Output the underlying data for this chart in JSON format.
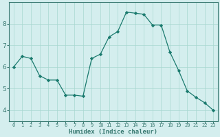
{
  "x": [
    0,
    1,
    2,
    3,
    4,
    5,
    6,
    7,
    8,
    9,
    10,
    11,
    12,
    13,
    14,
    15,
    16,
    17,
    18,
    19,
    20,
    21,
    22,
    23
  ],
  "y": [
    6.0,
    6.5,
    6.4,
    5.6,
    5.4,
    5.4,
    4.7,
    4.7,
    4.65,
    6.4,
    6.6,
    7.4,
    7.65,
    8.55,
    8.5,
    8.45,
    7.95,
    7.95,
    6.7,
    5.85,
    4.9,
    4.6,
    4.35,
    4.0
  ],
  "xlabel": "Humidex (Indice chaleur)",
  "line_color": "#1a7a6e",
  "marker_color": "#1a7a6e",
  "bg_color": "#d4eeee",
  "grid_color": "#a8d8d0",
  "axis_color": "#3a7a72",
  "ylim": [
    3.5,
    9.0
  ],
  "xlim": [
    -0.5,
    23.5
  ],
  "yticks": [
    4,
    5,
    6,
    7,
    8
  ],
  "xlabel_fontsize": 6.5,
  "tick_fontsize_x": 5.0,
  "tick_fontsize_y": 6.5
}
